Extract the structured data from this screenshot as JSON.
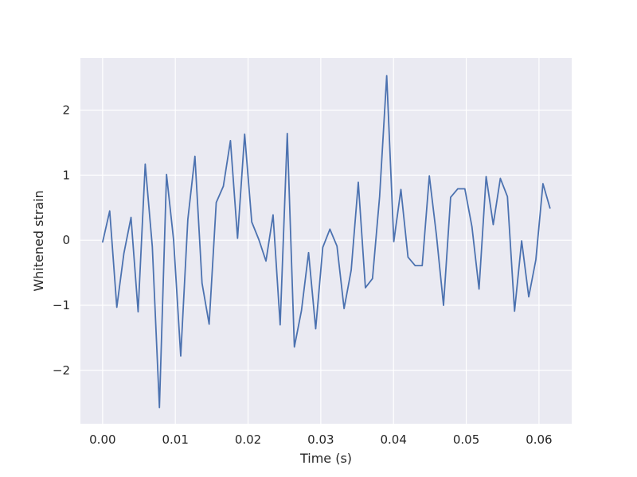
{
  "chart_data": {
    "type": "line",
    "title": "",
    "xlabel": "Time (s)",
    "ylabel": "Whitened strain",
    "xlim": [
      -0.00305,
      0.0645
    ],
    "ylim": [
      -2.82,
      2.8
    ],
    "xticks": [
      0.0,
      0.01,
      0.02,
      0.03,
      0.04,
      0.05,
      0.06
    ],
    "xtick_labels": [
      "0.00",
      "0.01",
      "0.02",
      "0.03",
      "0.04",
      "0.05",
      "0.06"
    ],
    "yticks": [
      -2,
      -1,
      0,
      1,
      2
    ],
    "ytick_labels": [
      "−2",
      "−1",
      "0",
      "1",
      "2"
    ],
    "grid": true,
    "style": "seaborn darkgrid",
    "series": [
      {
        "color": "#4c72b0",
        "x": [
          0.0,
          0.000977,
          0.001953,
          0.00293,
          0.003906,
          0.004883,
          0.005859,
          0.006836,
          0.007813,
          0.008789,
          0.009766,
          0.010742,
          0.011719,
          0.012695,
          0.013672,
          0.014648,
          0.015625,
          0.016602,
          0.017578,
          0.018555,
          0.019531,
          0.020508,
          0.021484,
          0.022461,
          0.023438,
          0.024414,
          0.025391,
          0.026367,
          0.027344,
          0.02832,
          0.029297,
          0.030273,
          0.03125,
          0.032227,
          0.033203,
          0.03418,
          0.035156,
          0.036133,
          0.037109,
          0.038086,
          0.039063,
          0.040039,
          0.041016,
          0.041992,
          0.042969,
          0.043945,
          0.044922,
          0.045898,
          0.046875,
          0.047852,
          0.048828,
          0.049805,
          0.050781,
          0.051758,
          0.052734,
          0.053711,
          0.054688,
          0.055664,
          0.056641,
          0.057617,
          0.058594,
          0.05957,
          0.060547,
          0.061523
        ],
        "y": [
          -0.03,
          0.45,
          -1.03,
          -0.2,
          0.35,
          -1.1,
          1.17,
          -0.1,
          -2.57,
          1.01,
          0.0,
          -1.78,
          0.32,
          1.29,
          -0.66,
          -1.29,
          0.58,
          0.83,
          1.53,
          0.03,
          1.63,
          0.28,
          0.01,
          -0.32,
          0.39,
          -1.3,
          1.64,
          -1.64,
          -1.08,
          -0.19,
          -1.36,
          -0.11,
          0.17,
          -0.09,
          -1.05,
          -0.46,
          0.89,
          -0.73,
          -0.59,
          0.67,
          2.53,
          -0.02,
          0.78,
          -0.26,
          -0.39,
          -0.39,
          0.99,
          0.08,
          -1.0,
          0.66,
          0.79,
          0.79,
          0.21,
          -0.75,
          0.98,
          0.24,
          0.95,
          0.67,
          -1.09,
          -0.01,
          -0.87,
          -0.3,
          0.87,
          0.49
        ]
      }
    ]
  }
}
